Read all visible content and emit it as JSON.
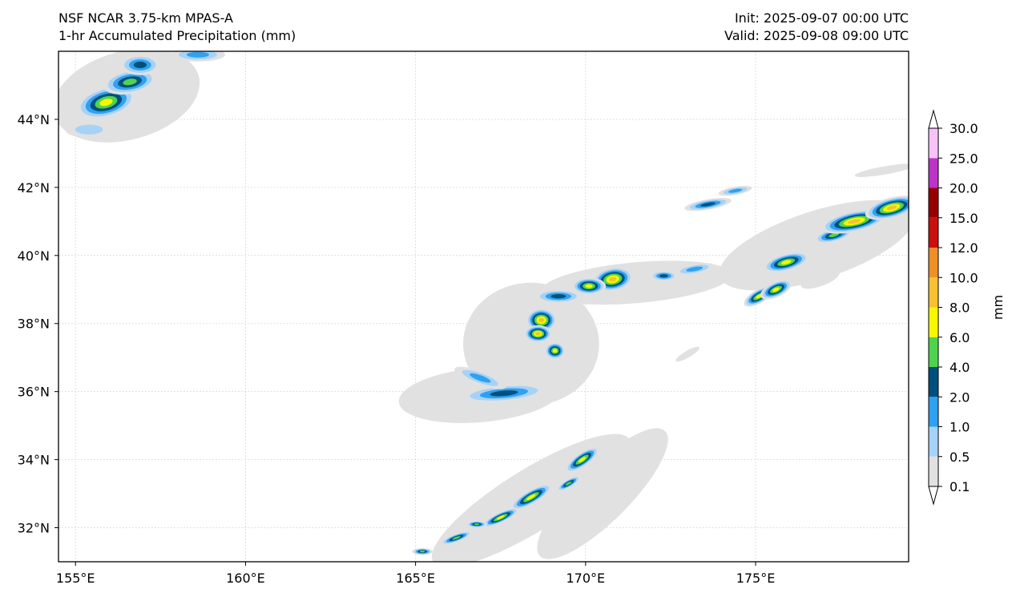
{
  "header": {
    "title": "NSF NCAR 3.75-km MPAS-A",
    "subtitle": "1-hr Accumulated Precipitation (mm)",
    "init": "Init: 2025-09-07 00:00 UTC",
    "valid": "Valid: 2025-09-08 09:00 UTC"
  },
  "map": {
    "lon_labels": [
      "155°E",
      "160°E",
      "165°E",
      "170°E",
      "175°E"
    ],
    "lat_labels": [
      "44°N",
      "42°N",
      "40°N",
      "38°N",
      "36°N",
      "34°N",
      "32°N"
    ],
    "lon_values": [
      155,
      160,
      165,
      170,
      175
    ],
    "lat_values": [
      44,
      42,
      40,
      38,
      36,
      34,
      32
    ],
    "extent": {
      "lon_min": 154.5,
      "lon_max": 179.5,
      "lat_min": 31.0,
      "lat_max": 46.0
    },
    "gridlines": true,
    "precip_cells": [
      {
        "lon": 155.9,
        "lat": 44.5,
        "rx": 0.9,
        "ry": 0.45,
        "level": 5,
        "rot": -15
      },
      {
        "lon": 156.6,
        "lat": 45.1,
        "rx": 0.8,
        "ry": 0.35,
        "level": 4,
        "rot": -10
      },
      {
        "lon": 156.9,
        "lat": 45.6,
        "rx": 0.6,
        "ry": 0.3,
        "level": 3,
        "rot": 0
      },
      {
        "lon": 158.6,
        "lat": 45.9,
        "rx": 0.8,
        "ry": 0.2,
        "level": 2,
        "rot": 0
      },
      {
        "lon": 155.4,
        "lat": 43.7,
        "rx": 0.7,
        "ry": 0.25,
        "level": 1,
        "rot": 0
      },
      {
        "lon": 170.8,
        "lat": 39.3,
        "rx": 0.6,
        "ry": 0.35,
        "level": 6,
        "rot": -10
      },
      {
        "lon": 170.1,
        "lat": 39.1,
        "rx": 0.5,
        "ry": 0.25,
        "level": 5,
        "rot": 0
      },
      {
        "lon": 169.2,
        "lat": 38.8,
        "rx": 0.7,
        "ry": 0.2,
        "level": 3,
        "rot": 0
      },
      {
        "lon": 168.7,
        "lat": 38.1,
        "rx": 0.45,
        "ry": 0.35,
        "level": 6,
        "rot": 0
      },
      {
        "lon": 168.6,
        "lat": 37.7,
        "rx": 0.4,
        "ry": 0.25,
        "level": 6,
        "rot": 0
      },
      {
        "lon": 169.1,
        "lat": 37.2,
        "rx": 0.3,
        "ry": 0.25,
        "level": 5,
        "rot": 0
      },
      {
        "lon": 167.6,
        "lat": 35.95,
        "rx": 1.3,
        "ry": 0.25,
        "level": 3,
        "rot": -5
      },
      {
        "lon": 166.9,
        "lat": 36.4,
        "rx": 0.8,
        "ry": 0.2,
        "level": 2,
        "rot": 20
      },
      {
        "lon": 172.3,
        "lat": 39.4,
        "rx": 0.4,
        "ry": 0.15,
        "level": 3,
        "rot": 0
      },
      {
        "lon": 173.2,
        "lat": 39.6,
        "rx": 0.6,
        "ry": 0.15,
        "level": 2,
        "rot": -10
      },
      {
        "lon": 173.6,
        "lat": 41.5,
        "rx": 0.7,
        "ry": 0.15,
        "level": 3,
        "rot": -10
      },
      {
        "lon": 174.4,
        "lat": 41.9,
        "rx": 0.5,
        "ry": 0.12,
        "level": 2,
        "rot": -10
      },
      {
        "lon": 175.1,
        "lat": 38.8,
        "rx": 0.5,
        "ry": 0.2,
        "level": 5,
        "rot": -30
      },
      {
        "lon": 175.6,
        "lat": 39.0,
        "rx": 0.5,
        "ry": 0.22,
        "level": 5,
        "rot": -25
      },
      {
        "lon": 175.9,
        "lat": 39.8,
        "rx": 0.7,
        "ry": 0.25,
        "level": 5,
        "rot": -15
      },
      {
        "lon": 177.3,
        "lat": 40.6,
        "rx": 0.6,
        "ry": 0.2,
        "level": 4,
        "rot": -15
      },
      {
        "lon": 177.9,
        "lat": 41.0,
        "rx": 1.0,
        "ry": 0.3,
        "level": 6,
        "rot": -12
      },
      {
        "lon": 179.0,
        "lat": 41.4,
        "rx": 0.8,
        "ry": 0.3,
        "level": 6,
        "rot": -15
      },
      {
        "lon": 169.9,
        "lat": 34.0,
        "rx": 0.6,
        "ry": 0.2,
        "level": 5,
        "rot": -35
      },
      {
        "lon": 168.4,
        "lat": 32.9,
        "rx": 0.7,
        "ry": 0.2,
        "level": 5,
        "rot": -30
      },
      {
        "lon": 167.5,
        "lat": 32.3,
        "rx": 0.6,
        "ry": 0.15,
        "level": 5,
        "rot": -25
      },
      {
        "lon": 166.2,
        "lat": 31.7,
        "rx": 0.5,
        "ry": 0.12,
        "level": 4,
        "rot": -20
      },
      {
        "lon": 165.2,
        "lat": 31.3,
        "rx": 0.3,
        "ry": 0.1,
        "level": 4,
        "rot": 0
      },
      {
        "lon": 169.5,
        "lat": 33.3,
        "rx": 0.4,
        "ry": 0.12,
        "level": 4,
        "rot": -30
      },
      {
        "lon": 166.8,
        "lat": 32.1,
        "rx": 0.3,
        "ry": 0.1,
        "level": 4,
        "rot": 0
      }
    ],
    "light_areas": [
      {
        "lon": 156.5,
        "lat": 44.7,
        "rx": 2.2,
        "ry": 1.3,
        "rot": -15
      },
      {
        "lon": 168.4,
        "lat": 37.4,
        "rx": 2.0,
        "ry": 1.8,
        "rot": 0
      },
      {
        "lon": 171.5,
        "lat": 39.2,
        "rx": 2.8,
        "ry": 0.6,
        "rot": -5
      },
      {
        "lon": 166.9,
        "lat": 35.9,
        "rx": 2.4,
        "ry": 0.8,
        "rot": -5
      },
      {
        "lon": 176.8,
        "lat": 40.3,
        "rx": 3.0,
        "ry": 1.0,
        "rot": -18
      },
      {
        "lon": 168.4,
        "lat": 32.8,
        "rx": 3.4,
        "ry": 0.9,
        "rot": -32
      },
      {
        "lon": 170.5,
        "lat": 33.0,
        "rx": 2.6,
        "ry": 0.8,
        "rot": -45
      },
      {
        "lon": 178.8,
        "lat": 42.5,
        "rx": 0.9,
        "ry": 0.12,
        "rot": -10
      },
      {
        "lon": 176.9,
        "lat": 39.3,
        "rx": 0.6,
        "ry": 0.2,
        "rot": -20
      },
      {
        "lon": 173.0,
        "lat": 37.1,
        "rx": 0.4,
        "ry": 0.1,
        "rot": -30
      }
    ]
  },
  "colorbar": {
    "unit_label": "mm",
    "tick_labels": [
      "0.1",
      "0.5",
      "1.0",
      "2.0",
      "4.0",
      "6.0",
      "8.0",
      "10.0",
      "12.0",
      "15.0",
      "20.0",
      "25.0",
      "30.0"
    ],
    "colors": [
      "#e1e1e1",
      "#a6d2f7",
      "#2fa1f0",
      "#00507e",
      "#4fd34f",
      "#f7f700",
      "#f7c132",
      "#ef8f27",
      "#cb0f0f",
      "#980000",
      "#bc33c7",
      "#f9c2f7"
    ],
    "extend_low_color": "#ffffff",
    "extend_high_color": "#ffffff"
  }
}
